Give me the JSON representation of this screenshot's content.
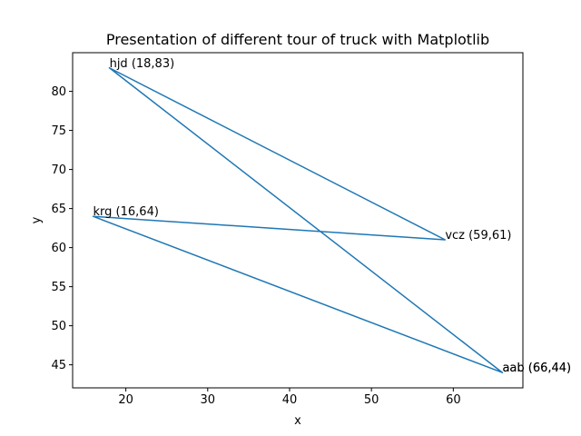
{
  "chart_data": {
    "type": "line",
    "title": "Presentation of different tour of truck with Matplotlib",
    "xlabel": "x",
    "ylabel": "y",
    "xlim": [
      13.5,
      68.5
    ],
    "ylim": [
      42.05,
      84.95
    ],
    "xticks": [
      20,
      30,
      40,
      50,
      60
    ],
    "yticks": [
      45,
      50,
      55,
      60,
      65,
      70,
      75,
      80
    ],
    "grid": false,
    "series": [
      {
        "color": "#1f77b4",
        "points": [
          {
            "x": 18,
            "y": 83
          },
          {
            "x": 59,
            "y": 61
          },
          {
            "x": 16,
            "y": 64
          },
          {
            "x": 66,
            "y": 44
          },
          {
            "x": 18,
            "y": 83
          }
        ]
      }
    ],
    "annotations": [
      {
        "x": 18,
        "y": 83,
        "text": "hjd (18,83)"
      },
      {
        "x": 59,
        "y": 61,
        "text": "vcz (59,61)"
      },
      {
        "x": 16,
        "y": 64,
        "text": "krg (16,64)"
      },
      {
        "x": 66,
        "y": 44,
        "text": "aab (66,44)"
      },
      {
        "x": 66,
        "y": 44,
        "text": "aab (66,44)"
      }
    ]
  }
}
